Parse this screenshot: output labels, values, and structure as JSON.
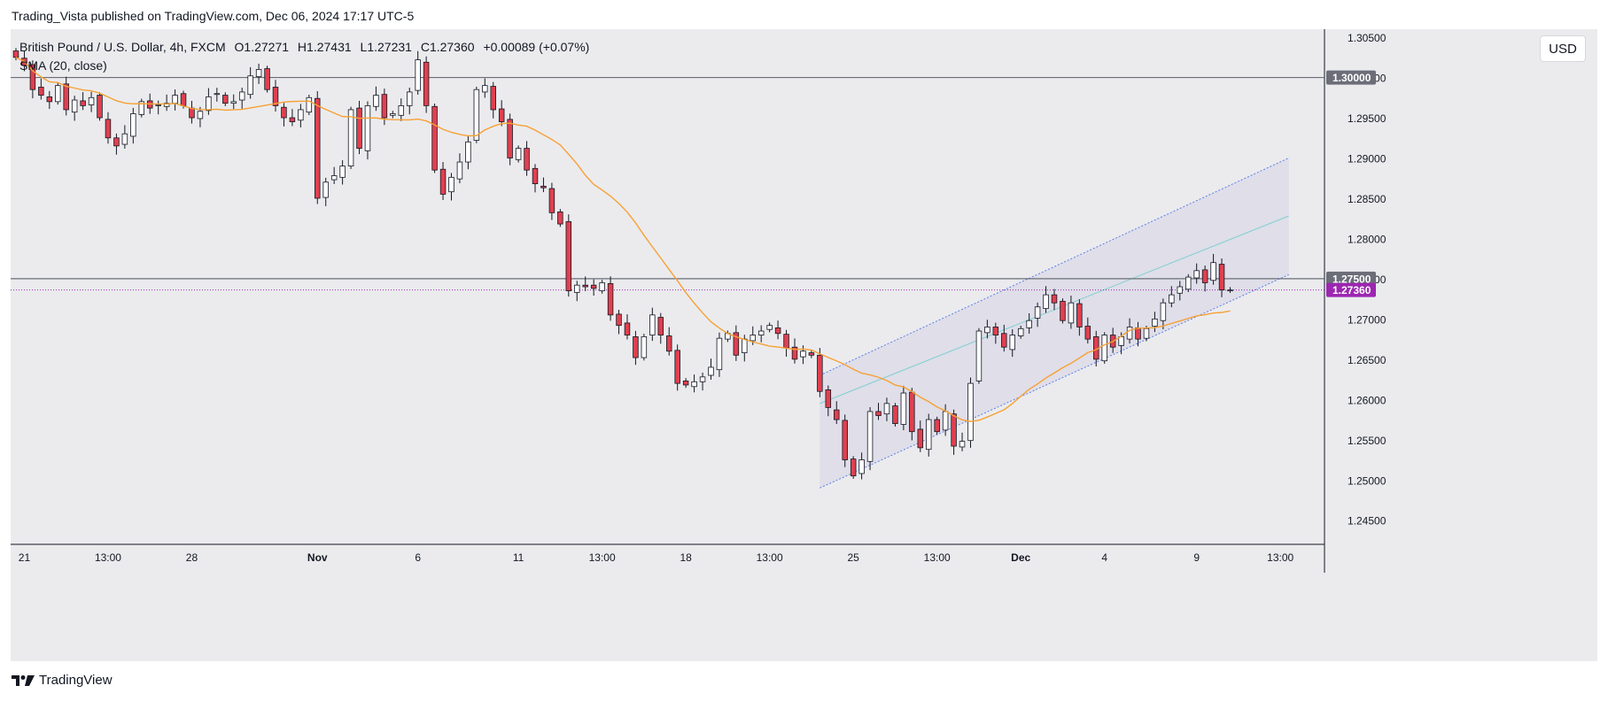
{
  "header": {
    "published": "Trading_Vista published on TradingView.com, Dec 06, 2024 17:17 UTC-5"
  },
  "legend": {
    "symbol": "British Pound / U.S. Dollar, 4h, FXCM",
    "open": "O1.27271",
    "high": "H1.27431",
    "low": "L1.27231",
    "close": "C1.27360",
    "change": "+0.00089 (+0.07%)",
    "indicator": "SMA (20, close)"
  },
  "currency_button": "USD",
  "footer": {
    "brand": "TradingView"
  },
  "colors": {
    "up": "#ffffff",
    "down": "#e0404f",
    "wick": "#131722",
    "sma": "#f7a134",
    "channel_line": "#5b7de8",
    "channel_mid": "#7fcfcf",
    "price_marker": "#9c27b0",
    "level_line": "#6b6e78"
  },
  "chart_data": {
    "type": "candlestick",
    "symbol": "GBPUSD",
    "timeframe": "4h",
    "ylim": [
      1.242,
      1.306
    ],
    "y_ticks": [
      "1.24500",
      "1.25000",
      "1.25500",
      "1.26000",
      "1.26500",
      "1.27000",
      "1.27500",
      "1.28000",
      "1.28500",
      "1.29000",
      "1.29500",
      "1.30000",
      "1.30500"
    ],
    "x_range": [
      0,
      155
    ],
    "x_ticks": [
      {
        "i": 1,
        "label": "21"
      },
      {
        "i": 11,
        "label": "13:00"
      },
      {
        "i": 21,
        "label": "28"
      },
      {
        "i": 36,
        "label": "Nov"
      },
      {
        "i": 48,
        "label": "6"
      },
      {
        "i": 60,
        "label": "11"
      },
      {
        "i": 70,
        "label": "13:00"
      },
      {
        "i": 80,
        "label": "18"
      },
      {
        "i": 90,
        "label": "13:00"
      },
      {
        "i": 100,
        "label": "25"
      },
      {
        "i": 110,
        "label": "13:00"
      },
      {
        "i": 120,
        "label": "Dec"
      },
      {
        "i": 130,
        "label": "4"
      },
      {
        "i": 141,
        "label": "9"
      },
      {
        "i": 151,
        "label": "13:00"
      }
    ],
    "horizontal_levels": [
      {
        "value": 1.3,
        "label": "1.30000"
      },
      {
        "value": 1.275,
        "label": "1.27500"
      }
    ],
    "last_price": {
      "value": 1.2736,
      "label": "1.27360"
    },
    "channel": {
      "upper": [
        [
          96,
          1.263
        ],
        [
          152,
          1.29
        ]
      ],
      "middle": [
        [
          96,
          1.2595
        ],
        [
          152,
          1.2828
        ]
      ],
      "lower": [
        [
          96,
          1.249
        ],
        [
          152,
          1.2755
        ]
      ]
    },
    "closes": [
      1.3025,
      1.3015,
      1.2985,
      1.2978,
      1.297,
      1.299,
      1.296,
      1.2972,
      1.2965,
      1.2975,
      1.295,
      1.2925,
      1.2915,
      1.293,
      1.2955,
      1.297,
      1.2962,
      1.2966,
      1.2968,
      1.2978,
      1.2965,
      1.295,
      1.2958,
      1.2976,
      1.298,
      1.2968,
      1.297,
      1.2982,
      1.3002,
      1.301,
      1.2985,
      1.2965,
      1.295,
      1.2945,
      1.296,
      1.2975,
      1.285,
      1.287,
      1.2878,
      1.289,
      1.296,
      1.2912,
      1.2965,
      1.2978,
      1.295,
      1.2955,
      1.2965,
      1.2982,
      1.3022,
      1.2965,
      1.2885,
      1.2855,
      1.2876,
      1.2895,
      1.292,
      1.2985,
      1.299,
      1.296,
      1.2945,
      1.29,
      1.2912,
      1.2885,
      1.2868,
      1.2863,
      1.2832,
      1.2818,
      1.2735,
      1.2742,
      1.274,
      1.2738,
      1.2745,
      1.2705,
      1.2692,
      1.268,
      1.2652,
      1.2678,
      1.2705,
      1.268,
      1.266,
      1.262,
      1.2618,
      1.2622,
      1.2628,
      1.264,
      1.2676,
      1.2682,
      1.2655,
      1.2675,
      1.268,
      1.2685,
      1.2692,
      1.2682,
      1.2664,
      1.265,
      1.266,
      1.2655,
      1.261,
      1.259,
      1.2575,
      1.2525,
      1.2505,
      1.2525,
      1.2585,
      1.258,
      1.2595,
      1.257,
      1.2608,
      1.256,
      1.254,
      1.2575,
      1.256,
      1.2585,
      1.2542,
      1.2548,
      1.262,
      1.2685,
      1.269,
      1.268,
      1.2665,
      1.268,
      1.2688,
      1.2698,
      1.2715,
      1.273,
      1.272,
      1.2698,
      1.272,
      1.269,
      1.2675,
      1.265,
      1.268,
      1.2665,
      1.2678,
      1.269,
      1.2675,
      1.2688,
      1.27,
      1.272,
      1.273,
      1.274,
      1.2752,
      1.276,
      1.2745,
      1.277,
      1.2736,
      1.2736
    ]
  }
}
